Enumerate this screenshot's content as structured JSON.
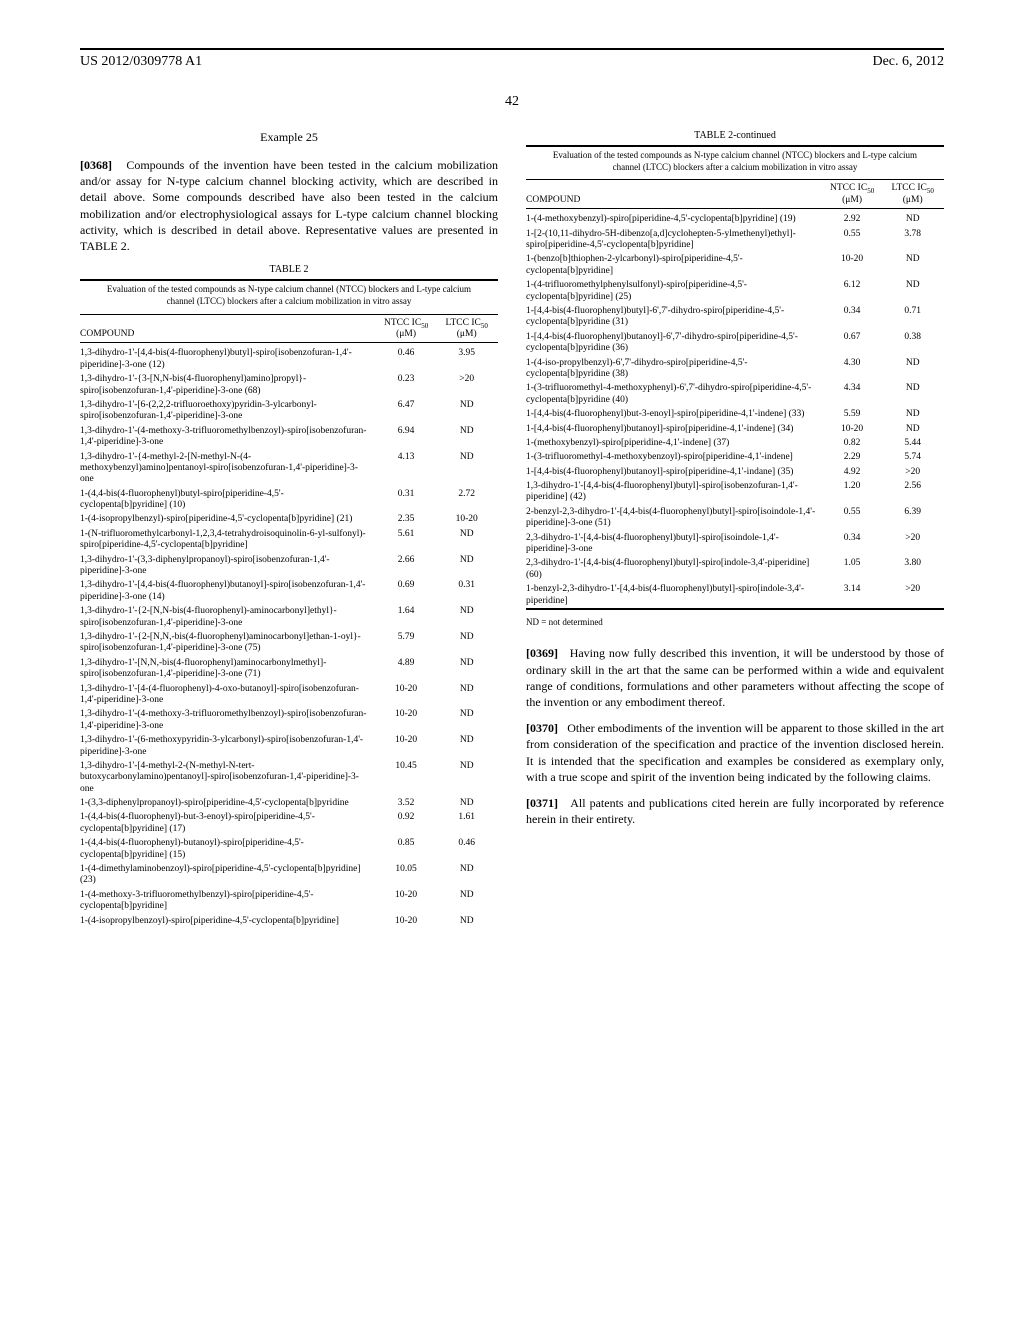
{
  "header": {
    "pub_number": "US 2012/0309778 A1",
    "pub_date": "Dec. 6, 2012",
    "page_number": "42"
  },
  "left": {
    "example_label": "Example 25",
    "para_num": "[0368]",
    "para_text": "Compounds of the invention have been tested in the calcium mobilization and/or assay for N-type calcium channel blocking activity, which are described in detail above. Some compounds described have also been tested in the calcium mobilization and/or electrophysiological assays for L-type calcium channel blocking activity, which is described in detail above. Representative values are presented in TABLE 2.",
    "table_label": "TABLE 2",
    "table_caption": "Evaluation of the tested compounds as N-type calcium channel (NTCC) blockers and L-type calcium channel (LTCC) blockers after a calcium mobilization in vitro assay",
    "columns": {
      "c1": "COMPOUND",
      "c2_a": "NTCC IC",
      "c2_b": "(μM)",
      "c3_a": "LTCC IC",
      "c3_b": "(μM)",
      "sub": "50"
    },
    "rows": [
      {
        "c": "1,3-dihydro-1'-[4,4-bis(4-fluorophenyl)butyl]-spiro[isobenzofuran-1,4'-piperidine]-3-one (12)",
        "n": "0.46",
        "l": "3.95"
      },
      {
        "c": "1,3-dihydro-1'-{3-[N,N-bis(4-fluorophenyl)amino]propyl}-spiro[isobenzofuran-1,4'-piperidine]-3-one (68)",
        "n": "0.23",
        "l": ">20"
      },
      {
        "c": "1,3-dihydro-1'-[6-(2,2,2-trifluoroethoxy)pyridin-3-ylcarbonyl-spiro[isobenzofuran-1,4'-piperidine]-3-one",
        "n": "6.47",
        "l": "ND"
      },
      {
        "c": "1,3-dihydro-1'-(4-methoxy-3-trifluoromethylbenzoyl)-spiro[isobenzofuran-1,4'-piperidine]-3-one",
        "n": "6.94",
        "l": "ND"
      },
      {
        "c": "1,3-dihydro-1'-{4-methyl-2-[N-methyl-N-(4-methoxybenzyl)amino]pentanoyl-spiro[isobenzofuran-1,4'-piperidine]-3-one",
        "n": "4.13",
        "l": "ND"
      },
      {
        "c": "1-(4,4-bis(4-fluorophenyl)butyl-spiro[piperidine-4,5'-cyclopenta[b]pyridine] (10)",
        "n": "0.31",
        "l": "2.72"
      },
      {
        "c": "1-(4-isopropylbenzyl)-spiro[piperidine-4,5'-cyclopenta[b]pyridine] (21)",
        "n": "2.35",
        "l": "10-20"
      },
      {
        "c": "1-(N-trifluoromethylcarbonyl-1,2,3,4-tetrahydroisoquinolin-6-yl-sulfonyl)-spiro[piperidine-4,5'-cyclopenta[b]pyridine]",
        "n": "5.61",
        "l": "ND"
      },
      {
        "c": "1,3-dihydro-1'-(3,3-diphenylpropanoyl)-spiro[isobenzofuran-1,4'-piperidine]-3-one",
        "n": "2.66",
        "l": "ND"
      },
      {
        "c": "1,3-dihydro-1'-[4,4-bis(4-fluorophenyl)butanoyl]-spiro[isobenzofuran-1,4'-piperidine]-3-one (14)",
        "n": "0.69",
        "l": "0.31"
      },
      {
        "c": "1,3-dihydro-1'-{2-[N,N-bis(4-fluorophenyl)-aminocarbonyl]ethyl}-spiro[isobenzofuran-1,4'-piperidine]-3-one",
        "n": "1.64",
        "l": "ND"
      },
      {
        "c": "1,3-dihydro-1'-{2-[N,N,-bis(4-fluorophenyl)aminocarbonyl]ethan-1-oyl}-spiro[isobenzofuran-1,4'-piperidine]-3-one (75)",
        "n": "5.79",
        "l": "ND"
      },
      {
        "c": "1,3-dihydro-1'-[N,N,-bis(4-fluorophenyl)aminocarbonylmethyl]-spiro[isobenzofuran-1,4'-piperidine]-3-one (71)",
        "n": "4.89",
        "l": "ND"
      },
      {
        "c": "1,3-dihydro-1'-[4-(4-fluorophenyl)-4-oxo-butanoyl]-spiro[isobenzofuran-1,4'-piperidine]-3-one",
        "n": "10-20",
        "l": "ND"
      },
      {
        "c": "1,3-dihydro-1'-(4-methoxy-3-trifluoromethylbenzoyl)-spiro[isobenzofuran-1,4'-piperidine]-3-one",
        "n": "10-20",
        "l": "ND"
      },
      {
        "c": "1,3-dihydro-1'-(6-methoxypyridin-3-ylcarbonyl)-spiro[isobenzofuran-1,4'-piperidine]-3-one",
        "n": "10-20",
        "l": "ND"
      },
      {
        "c": "1,3-dihydro-1'-[4-methyl-2-(N-methyl-N-tert-butoxycarbonylamino)pentanoyl]-spiro[isobenzofuran-1,4'-piperidine]-3-one",
        "n": "10.45",
        "l": "ND"
      },
      {
        "c": "1-(3,3-diphenylpropanoyl)-spiro[piperidine-4,5'-cyclopenta[b]pyridine",
        "n": "3.52",
        "l": "ND"
      },
      {
        "c": "1-(4,4-bis(4-fluorophenyl)-but-3-enoyl)-spiro[piperidine-4,5'-cyclopenta[b]pyridine] (17)",
        "n": "0.92",
        "l": "1.61"
      },
      {
        "c": "1-(4,4-bis(4-fluorophenyl)-butanoyl)-spiro[piperidine-4,5'-cyclopenta[b]pyridine] (15)",
        "n": "0.85",
        "l": "0.46"
      },
      {
        "c": "1-(4-dimethylaminobenzoyl)-spiro[piperidine-4,5'-cyclopenta[b]pyridine] (23)",
        "n": "10.05",
        "l": "ND"
      },
      {
        "c": "1-(4-methoxy-3-trifluoromethylbenzyl)-spiro[piperidine-4,5'-cyclopenta[b]pyridine]",
        "n": "10-20",
        "l": "ND"
      },
      {
        "c": "1-(4-isopropylbenzoyl)-spiro[piperidine-4,5'-cyclopenta[b]pyridine]",
        "n": "10-20",
        "l": "ND"
      }
    ]
  },
  "right": {
    "table_label": "TABLE 2-continued",
    "table_caption": "Evaluation of the tested compounds as N-type calcium channel (NTCC) blockers and L-type calcium channel (LTCC) blockers after a calcium mobilization in vitro assay",
    "columns": {
      "c1": "COMPOUND",
      "c2_a": "NTCC IC",
      "c2_b": "(μM)",
      "c3_a": "LTCC IC",
      "c3_b": "(μM)",
      "sub": "50"
    },
    "rows": [
      {
        "c": "1-(4-methoxybenzyl)-spiro[piperidine-4,5'-cyclopenta[b]pyridine] (19)",
        "n": "2.92",
        "l": "ND"
      },
      {
        "c": "1-[2-(10,11-dihydro-5H-dibenzo[a,d]cyclohepten-5-ylmethenyl)ethyl]-spiro[piperidine-4,5'-cyclopenta[b]pyridine]",
        "n": "0.55",
        "l": "3.78"
      },
      {
        "c": "1-(benzo[b]thiophen-2-ylcarbonyl)-spiro[piperidine-4,5'-cyclopenta[b]pyridine]",
        "n": "10-20",
        "l": "ND"
      },
      {
        "c": "1-(4-trifluoromethylphenylsulfonyl)-spiro[piperidine-4,5'-cyclopenta[b]pyridine] (25)",
        "n": "6.12",
        "l": "ND"
      },
      {
        "c": "1-[4,4-bis(4-fluorophenyl)butyl]-6',7'-dihydro-spiro[piperidine-4,5'-cyclopenta[b]pyridine (31)",
        "n": "0.34",
        "l": "0.71"
      },
      {
        "c": "1-[4,4-bis(4-fluorophenyl)butanoyl]-6',7'-dihydro-spiro[piperidine-4,5'-cyclopenta[b]pyridine (36)",
        "n": "0.67",
        "l": "0.38"
      },
      {
        "c": "1-(4-iso-propylbenzyl)-6',7'-dihydro-spiro[piperidine-4,5'-cyclopenta[b]pyridine (38)",
        "n": "4.30",
        "l": "ND"
      },
      {
        "c": "1-(3-trifluoromethyl-4-methoxyphenyl)-6',7'-dihydro-spiro[piperidine-4,5'-cyclopenta[b]pyridine (40)",
        "n": "4.34",
        "l": "ND"
      },
      {
        "c": "1-[4,4-bis(4-fluorophenyl)but-3-enoyl]-spiro[piperidine-4,1'-indene] (33)",
        "n": "5.59",
        "l": "ND"
      },
      {
        "c": "1-[4,4-bis(4-fluorophenyl)butanoyl]-spiro[piperidine-4,1'-indene] (34)",
        "n": "10-20",
        "l": "ND"
      },
      {
        "c": "1-(methoxybenzyl)-spiro[piperidine-4,1'-indene] (37)",
        "n": "0.82",
        "l": "5.44"
      },
      {
        "c": "1-(3-trifluoromethyl-4-methoxybenzoyl)-spiro[piperidine-4,1'-indene]",
        "n": "2.29",
        "l": "5.74"
      },
      {
        "c": "1-[4,4-bis(4-fluorophenyl)butanoyl]-spiro[piperidine-4,1'-indane] (35)",
        "n": "4.92",
        "l": ">20"
      },
      {
        "c": "1,3-dihydro-1'-[4,4-bis(4-fluorophenyl)butyl]-spiro[isobenzofuran-1,4'-piperidine] (42)",
        "n": "1.20",
        "l": "2.56"
      },
      {
        "c": "2-benzyl-2,3-dihydro-1'-[4,4-bis(4-fluorophenyl)butyl]-spiro[isoindole-1,4'-piperidine]-3-one (51)",
        "n": "0.55",
        "l": "6.39"
      },
      {
        "c": "2,3-dihydro-1'-[4,4-bis(4-fluorophenyl)butyl]-spiro[isoindole-1,4'-piperidine]-3-one",
        "n": "0.34",
        "l": ">20"
      },
      {
        "c": "2,3-dihydro-1'-[4,4-bis(4-fluorophenyl)butyl]-spiro[indole-3,4'-piperidine] (60)",
        "n": "1.05",
        "l": "3.80"
      },
      {
        "c": "1-benzyl-2,3-dihydro-1'-[4,4-bis(4-fluorophenyl)butyl]-spiro[indole-3,4'-piperidine]",
        "n": "3.14",
        "l": ">20"
      }
    ],
    "footnote": "ND = not determined",
    "para_0369_num": "[0369]",
    "para_0369": "Having now fully described this invention, it will be understood by those of ordinary skill in the art that the same can be performed within a wide and equivalent range of conditions, formulations and other parameters without affecting the scope of the invention or any embodiment thereof.",
    "para_0370_num": "[0370]",
    "para_0370": "Other embodiments of the invention will be apparent to those skilled in the art from consideration of the specification and practice of the invention disclosed herein. It is intended that the specification and examples be considered as exemplary only, with a true scope and spirit of the invention being indicated by the following claims.",
    "para_0371_num": "[0371]",
    "para_0371": "All patents and publications cited herein are fully incorporated by reference herein in their entirety."
  }
}
